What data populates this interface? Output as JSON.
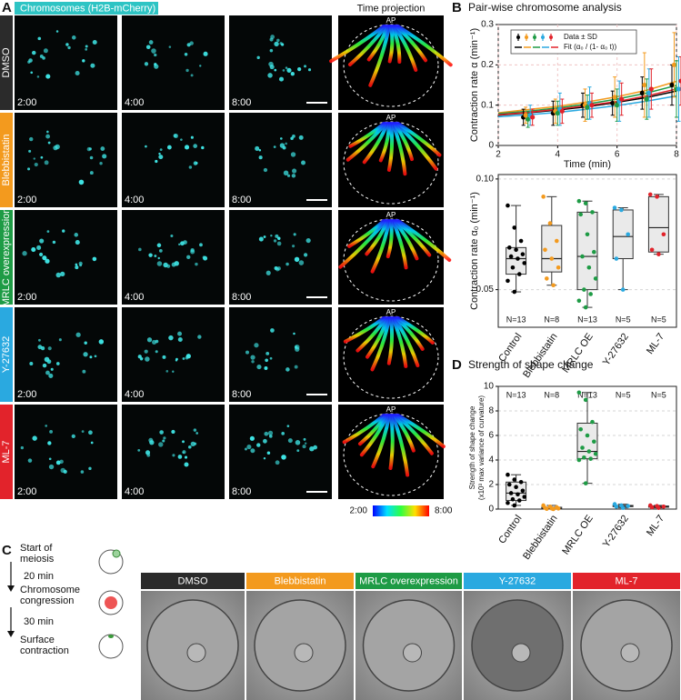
{
  "panels": {
    "a": "A",
    "b": "B",
    "c": "C",
    "d": "D"
  },
  "panel_a": {
    "header": "Chromosomes (H2B-mCherry)",
    "projection_header": "Time projection",
    "conditions": [
      "DMSO",
      "Blebbistatin",
      "MRLC overexpression",
      "Y-27632",
      "ML-7"
    ],
    "condition_colors": [
      "#2b2b2b",
      "#f39a1e",
      "#1e9b45",
      "#2aa9e0",
      "#e2232b"
    ],
    "time_labels": [
      "2:00",
      "4:00",
      "8:00"
    ],
    "projection_marker": "AP",
    "colorbar_labels": [
      "2:00",
      "8:00"
    ]
  },
  "chart_data": [
    {
      "type": "line",
      "title": "Pair-wise chromosome analysis",
      "x_label": "Time (min)",
      "y_label": "Contraction rate α (min⁻¹)",
      "xlim": [
        2,
        8
      ],
      "xticks": [
        2,
        4,
        6,
        8
      ],
      "ylim": [
        0,
        0.3
      ],
      "yticks": [
        0,
        0.1,
        0.2,
        0.3
      ],
      "grid": true,
      "legend": "top-left",
      "legend_labels": [
        "Data ± SD",
        "Fit (α₀ / (1- α₀ t))"
      ],
      "x": [
        3,
        4,
        5,
        6,
        7,
        8
      ],
      "fit_x": [
        2,
        3,
        4,
        5,
        6,
        7,
        8
      ],
      "series": [
        {
          "color": "#000000",
          "values": [
            0.07,
            0.08,
            0.1,
            0.105,
            0.13,
            0.15
          ],
          "errors": [
            0.02,
            0.03,
            0.03,
            0.03,
            0.04,
            0.05
          ],
          "fit_values": [
            0.075,
            0.081,
            0.088,
            0.096,
            0.107,
            0.119,
            0.135
          ]
        },
        {
          "color": "#f39a1e",
          "values": [
            0.075,
            0.085,
            0.1,
            0.12,
            0.15,
            0.2
          ],
          "errors": [
            0.02,
            0.03,
            0.04,
            0.05,
            0.08,
            0.08
          ],
          "fit_values": [
            0.081,
            0.089,
            0.097,
            0.108,
            0.121,
            0.137,
            0.159
          ]
        },
        {
          "color": "#1e9b45",
          "values": [
            0.065,
            0.08,
            0.095,
            0.1,
            0.115,
            0.14
          ],
          "errors": [
            0.02,
            0.03,
            0.03,
            0.04,
            0.05,
            0.07
          ],
          "fit_values": [
            0.079,
            0.085,
            0.093,
            0.103,
            0.115,
            0.13,
            0.149
          ]
        },
        {
          "color": "#2aa9e0",
          "values": [
            0.075,
            0.09,
            0.105,
            0.11,
            0.13,
            0.14
          ],
          "errors": [
            0.025,
            0.04,
            0.04,
            0.05,
            0.06,
            0.08
          ],
          "fit_values": [
            0.071,
            0.076,
            0.082,
            0.09,
            0.099,
            0.11,
            0.123
          ]
        },
        {
          "color": "#e2232b",
          "values": [
            0.07,
            0.085,
            0.1,
            0.115,
            0.14,
            0.16
          ],
          "errors": [
            0.02,
            0.03,
            0.03,
            0.04,
            0.05,
            0.06
          ],
          "fit_values": [
            0.076,
            0.082,
            0.09,
            0.099,
            0.109,
            0.123,
            0.14
          ]
        }
      ]
    },
    {
      "type": "box",
      "y_label": "Contraction rate α₀ (min⁻¹)",
      "categories": [
        "Control",
        "Blebbistatin",
        "MRLC OE",
        "Y-27632",
        "ML-7"
      ],
      "ylim": [
        0.033,
        0.102
      ],
      "yticks": [
        0.05,
        {
          "value": 0.1,
          "label": "0.10"
        }
      ],
      "grid": true,
      "n_labels": [
        "N=13",
        "N=8",
        "N=13",
        "N=5",
        "N=5"
      ],
      "n_label_position": "bottom",
      "boxes": [
        {
          "color": "#000000",
          "min": 0.049,
          "q1": 0.057,
          "median": 0.064,
          "q3": 0.069,
          "max": 0.088,
          "points": [
            0.088,
            0.078,
            0.072,
            0.069,
            0.068,
            0.066,
            0.065,
            0.064,
            0.062,
            0.06,
            0.057,
            0.054,
            0.049
          ]
        },
        {
          "color": "#f39a1e",
          "min": 0.052,
          "q1": 0.058,
          "median": 0.064,
          "q3": 0.079,
          "max": 0.092,
          "points": [
            0.092,
            0.08,
            0.072,
            0.068,
            0.064,
            0.06,
            0.055,
            0.052
          ]
        },
        {
          "color": "#1e9b45",
          "min": 0.042,
          "q1": 0.05,
          "median": 0.065,
          "q3": 0.085,
          "max": 0.09,
          "points": [
            0.09,
            0.089,
            0.085,
            0.084,
            0.075,
            0.067,
            0.065,
            0.06,
            0.055,
            0.05,
            0.048,
            0.045,
            0.042
          ]
        },
        {
          "color": "#2aa9e0",
          "min": 0.05,
          "q1": 0.064,
          "median": 0.074,
          "q3": 0.086,
          "max": 0.087,
          "points": [
            0.087,
            0.086,
            0.075,
            0.064,
            0.05
          ]
        },
        {
          "color": "#e2232b",
          "min": 0.066,
          "q1": 0.067,
          "median": 0.078,
          "q3": 0.092,
          "max": 0.093,
          "points": [
            0.093,
            0.092,
            0.075,
            0.068,
            0.066
          ]
        }
      ]
    },
    {
      "type": "box",
      "title": "Strength of shape change",
      "y_label": "Strength of shape change",
      "y_label_note": "(x10³ max variance of curvature)",
      "categories": [
        "Control",
        "Blebbistatin",
        "MRLC OE",
        "Y-27632",
        "ML-7"
      ],
      "ylim": [
        0,
        10
      ],
      "yticks": [
        0,
        2,
        4,
        6,
        8,
        10
      ],
      "grid": true,
      "n_labels": [
        "N=13",
        "N=8",
        "N=13",
        "N=5",
        "N=5"
      ],
      "n_label_position": "top",
      "boxes": [
        {
          "color": "#000000",
          "min": 0.3,
          "q1": 0.7,
          "median": 1.3,
          "q3": 2.2,
          "max": 2.8,
          "points": [
            2.8,
            2.4,
            2.2,
            2.0,
            1.8,
            1.5,
            1.3,
            1.2,
            1.0,
            0.8,
            0.7,
            0.5,
            0.3
          ]
        },
        {
          "color": "#f39a1e",
          "min": 0,
          "q1": 0.02,
          "median": 0.05,
          "q3": 0.15,
          "max": 0.3,
          "points": [
            0.3,
            0.2,
            0.15,
            0.1,
            0.05,
            0.05,
            0.02,
            0
          ]
        },
        {
          "color": "#1e9b45",
          "min": 2.1,
          "q1": 4.1,
          "median": 4.7,
          "q3": 7.0,
          "max": 9.5,
          "points": [
            9.5,
            8.9,
            7.1,
            6.5,
            6.0,
            5.5,
            5.0,
            4.7,
            4.5,
            4.2,
            4.1,
            4.0,
            2.1
          ]
        },
        {
          "color": "#2aa9e0",
          "min": 0.1,
          "q1": 0.2,
          "median": 0.25,
          "q3": 0.3,
          "max": 0.4,
          "points": [
            0.4,
            0.3,
            0.25,
            0.2,
            0.1
          ]
        },
        {
          "color": "#e2232b",
          "min": 0.1,
          "q1": 0.15,
          "median": 0.2,
          "q3": 0.25,
          "max": 0.3,
          "points": [
            0.3,
            0.25,
            0.2,
            0.15,
            0.1
          ]
        }
      ]
    }
  ],
  "panel_c": {
    "steps": [
      "Start of meiosis",
      "Chromosome congression",
      "Surface contraction"
    ],
    "intervals": [
      "20 min",
      "30 min"
    ]
  }
}
